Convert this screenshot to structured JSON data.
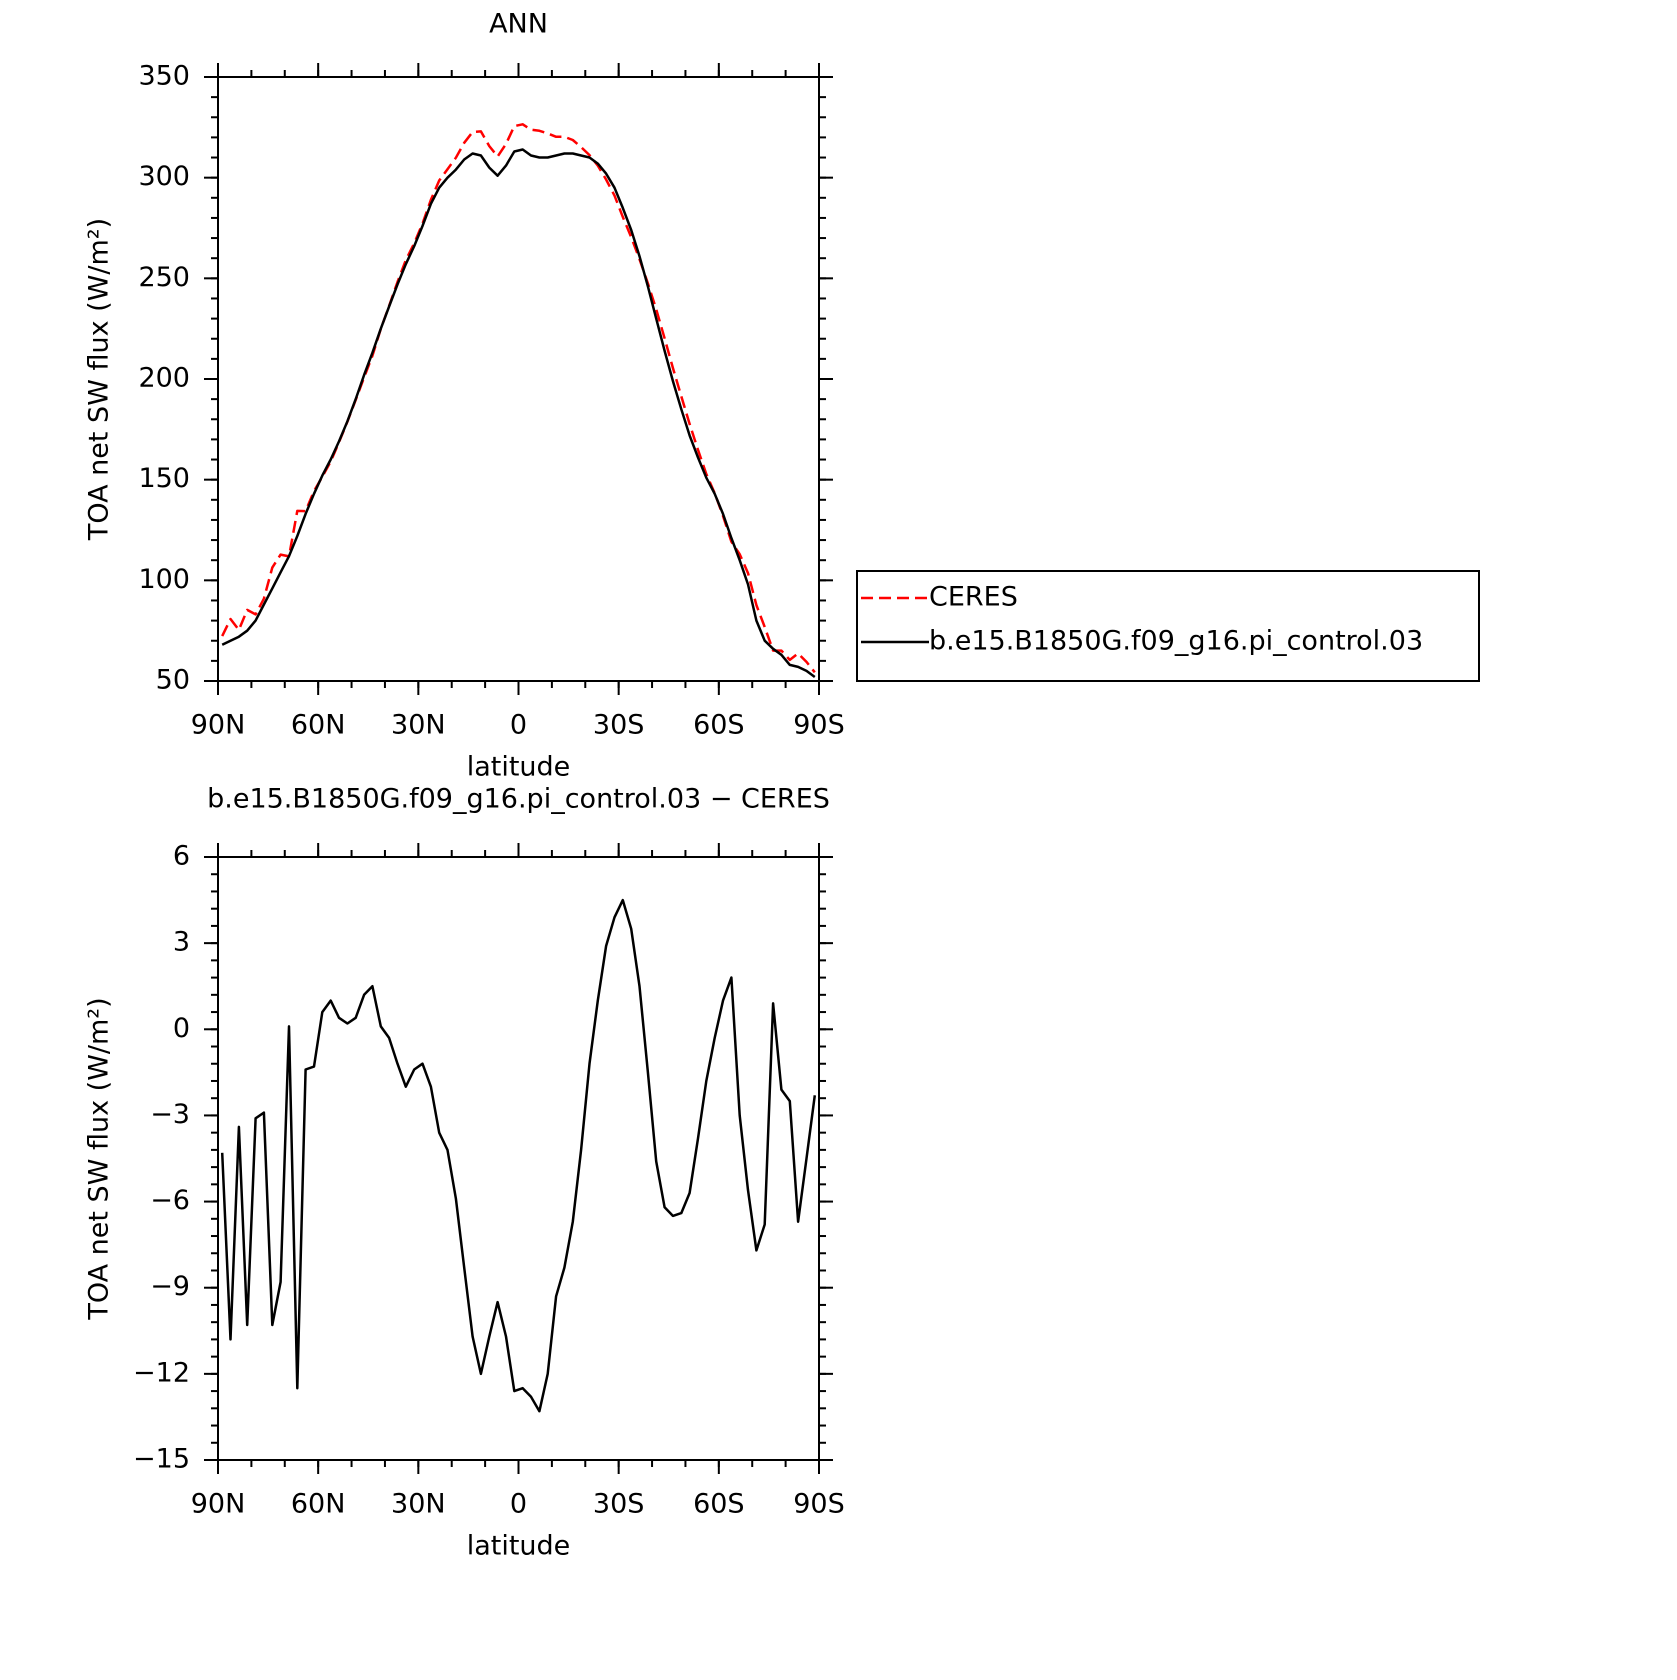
{
  "chart_data": [
    {
      "type": "line",
      "title": "ANN",
      "xlabel": "latitude",
      "ylabel": "TOA net SW flux (W/m²)",
      "x": [
        88.75,
        86.25,
        83.75,
        81.25,
        78.75,
        76.25,
        73.75,
        71.25,
        68.75,
        66.25,
        63.75,
        61.25,
        58.75,
        56.25,
        53.75,
        51.25,
        48.75,
        46.25,
        43.75,
        41.25,
        38.75,
        36.25,
        33.75,
        31.25,
        28.75,
        26.25,
        23.75,
        21.25,
        18.75,
        16.25,
        13.75,
        11.25,
        8.75,
        6.25,
        3.75,
        1.25,
        -1.25,
        -3.75,
        -6.25,
        -8.75,
        -11.25,
        -13.75,
        -16.25,
        -18.75,
        -21.25,
        -23.75,
        -26.25,
        -28.75,
        -31.25,
        -33.75,
        -36.25,
        -38.75,
        -41.25,
        -43.75,
        -46.25,
        -48.75,
        -51.25,
        -53.75,
        -56.25,
        -58.75,
        -61.25,
        -63.75,
        -66.25,
        -68.75,
        -71.25,
        -73.75,
        -76.25,
        -78.75,
        -81.25,
        -83.75,
        -86.25,
        -88.75
      ],
      "series": [
        {
          "name": "CERES",
          "color": "#ff0000",
          "dash": "dashed",
          "values": [
            72.3,
            80.8,
            75.4,
            85.3,
            83.1,
            90.9,
            106.3,
            112.8,
            111.9,
            134.5,
            134.4,
            144.3,
            151.4,
            159,
            168.6,
            178.8,
            189.6,
            200.8,
            211.5,
            224.9,
            236.3,
            248.2,
            259,
            267.4,
            277.2,
            289,
            298.6,
            304.2,
            309.9,
            317.3,
            322.7,
            323,
            315.7,
            310.5,
            316.7,
            325.6,
            326.5,
            323.8,
            323.3,
            322,
            320.3,
            320.3,
            318.7,
            315.2,
            311.2,
            306,
            299.1,
            291.1,
            280.5,
            270.5,
            259.5,
            247.5,
            234.6,
            220.2,
            205.5,
            191.4,
            177.7,
            164.8,
            152.8,
            143.3,
            132,
            119.2,
            113,
            103.6,
            87.7,
            76.8,
            65.1,
            65.1,
            60.5,
            63.7,
            59.5,
            54.3
          ]
        },
        {
          "name": "b.e15.B1850G.f09_g16.pi_control.03",
          "color": "#000000",
          "dash": "solid",
          "values": [
            68,
            70,
            72,
            75,
            80,
            88,
            96,
            104,
            112,
            122,
            133,
            143,
            152,
            160,
            169,
            179,
            190,
            202,
            213,
            225,
            236,
            247,
            257,
            266,
            276,
            287,
            295,
            300,
            304,
            309,
            312,
            311,
            305,
            301,
            306,
            313,
            314,
            311,
            310,
            310,
            311,
            312,
            312,
            311,
            310,
            307,
            302,
            295,
            285,
            274,
            261,
            246,
            230,
            214,
            199,
            185,
            172,
            161,
            151,
            143,
            133,
            121,
            110,
            98,
            80,
            70,
            66,
            63,
            58,
            57,
            55,
            52
          ]
        }
      ],
      "xlim": [
        90,
        -90
      ],
      "xticks": [
        {
          "value": 90,
          "label": "90N"
        },
        {
          "value": 60,
          "label": "60N"
        },
        {
          "value": 30,
          "label": "30N"
        },
        0,
        {
          "value": -30,
          "label": "30S"
        },
        {
          "value": -60,
          "label": "60S"
        },
        {
          "value": -90,
          "label": "90S"
        }
      ],
      "ylim": [
        50,
        350
      ],
      "yticks": [
        50,
        100,
        150,
        200,
        250,
        300,
        350
      ],
      "legend": "right"
    },
    {
      "type": "line",
      "title": "b.e15.B1850G.f09_g16.pi_control.03 − CERES",
      "xlabel": "latitude",
      "ylabel": "TOA net SW flux (W/m²)",
      "x": [
        88.75,
        86.25,
        83.75,
        81.25,
        78.75,
        76.25,
        73.75,
        71.25,
        68.75,
        66.25,
        63.75,
        61.25,
        58.75,
        56.25,
        53.75,
        51.25,
        48.75,
        46.25,
        43.75,
        41.25,
        38.75,
        36.25,
        33.75,
        31.25,
        28.75,
        26.25,
        23.75,
        21.25,
        18.75,
        16.25,
        13.75,
        11.25,
        8.75,
        6.25,
        3.75,
        1.25,
        -1.25,
        -3.75,
        -6.25,
        -8.75,
        -11.25,
        -13.75,
        -16.25,
        -18.75,
        -21.25,
        -23.75,
        -26.25,
        -28.75,
        -31.25,
        -33.75,
        -36.25,
        -38.75,
        -41.25,
        -43.75,
        -46.25,
        -48.75,
        -51.25,
        -53.75,
        -56.25,
        -58.75,
        -61.25,
        -63.75,
        -66.25,
        -68.75,
        -71.25,
        -73.75,
        -76.25,
        -78.75,
        -81.25,
        -83.75,
        -86.25,
        -88.75
      ],
      "values": [
        -4.3,
        -10.8,
        -3.4,
        -10.3,
        -3.1,
        -2.9,
        -10.3,
        -8.8,
        0.1,
        -12.5,
        -1.4,
        -1.3,
        0.6,
        1.0,
        0.4,
        0.2,
        0.4,
        1.2,
        1.5,
        0.1,
        -0.3,
        -1.2,
        -2.0,
        -1.4,
        -1.2,
        -2.0,
        -3.6,
        -4.2,
        -5.9,
        -8.3,
        -10.7,
        -12.0,
        -10.7,
        -9.5,
        -10.7,
        -12.6,
        -12.5,
        -12.8,
        -13.3,
        -12.0,
        -9.3,
        -8.3,
        -6.7,
        -4.2,
        -1.2,
        1.0,
        2.9,
        3.9,
        4.5,
        3.5,
        1.5,
        -1.5,
        -4.6,
        -6.2,
        -6.5,
        -6.4,
        -5.7,
        -3.8,
        -1.8,
        -0.3,
        1.0,
        1.8,
        -3.0,
        -5.6,
        -7.7,
        -6.8,
        0.9,
        -2.1,
        -2.5,
        -6.7,
        -4.5,
        -2.3
      ],
      "color": "#000000",
      "xlim": [
        90,
        -90
      ],
      "xticks": [
        {
          "value": 90,
          "label": "90N"
        },
        {
          "value": 60,
          "label": "60N"
        },
        {
          "value": 30,
          "label": "30N"
        },
        0,
        {
          "value": -30,
          "label": "30S"
        },
        {
          "value": -60,
          "label": "60S"
        },
        {
          "value": -90,
          "label": "90S"
        }
      ],
      "ylim": [
        -15,
        6
      ],
      "yticks": [
        {
          "value": -15,
          "label": "−15"
        },
        {
          "value": -12,
          "label": "−12"
        },
        {
          "value": -9,
          "label": "−9"
        },
        {
          "value": -6,
          "label": "−6"
        },
        {
          "value": -3,
          "label": "−3"
        },
        0,
        3,
        6
      ]
    }
  ]
}
